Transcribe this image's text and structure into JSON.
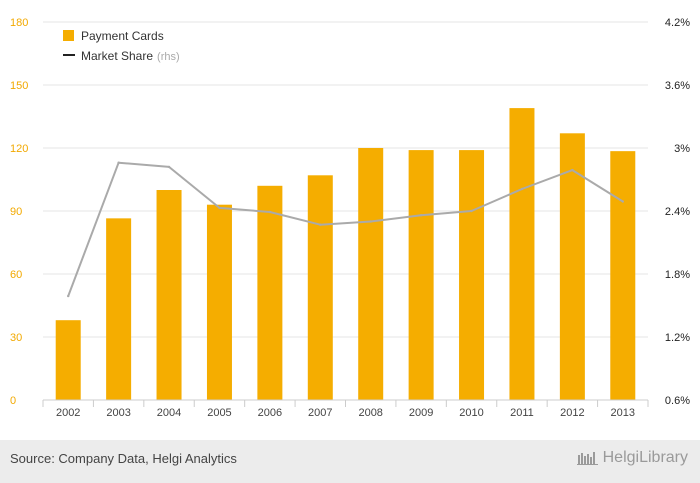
{
  "chart_data": {
    "type": "bar",
    "categories": [
      "2002",
      "2003",
      "2004",
      "2005",
      "2006",
      "2007",
      "2008",
      "2009",
      "2010",
      "2011",
      "2012",
      "2013"
    ],
    "series": [
      {
        "name": "Payment Cards",
        "type": "bar",
        "axis": "left",
        "values": [
          38,
          86.5,
          100,
          93,
          102,
          107,
          120,
          119,
          119,
          139,
          127,
          118.5
        ]
      },
      {
        "name": "Market Share",
        "type": "line",
        "axis": "right",
        "unit": "%",
        "values": [
          1.59,
          2.86,
          2.82,
          2.43,
          2.39,
          2.27,
          2.3,
          2.36,
          2.4,
          2.61,
          2.79,
          2.49
        ]
      }
    ],
    "ylim_left": [
      0,
      180
    ],
    "yticks_left": [
      "0",
      "30",
      "60",
      "90",
      "120",
      "150",
      "180"
    ],
    "ylim_right": [
      0.6,
      4.2
    ],
    "yticks_right": [
      "0.6%",
      "1.2%",
      "1.8%",
      "2.4%",
      "3%",
      "3.6%",
      "4.2%"
    ],
    "legend": {
      "placement": "top-left",
      "rhs_suffix": "(rhs)"
    },
    "grid": "horizontal",
    "colors": {
      "bar": "#f5ad00",
      "line": "#aaaaaa",
      "grid": "#e6e6e6",
      "left_axis_text": "#f2a900"
    }
  },
  "footer": {
    "source": "Source: Company Data, Helgi Analytics",
    "brand": "HelgiLibrary"
  }
}
